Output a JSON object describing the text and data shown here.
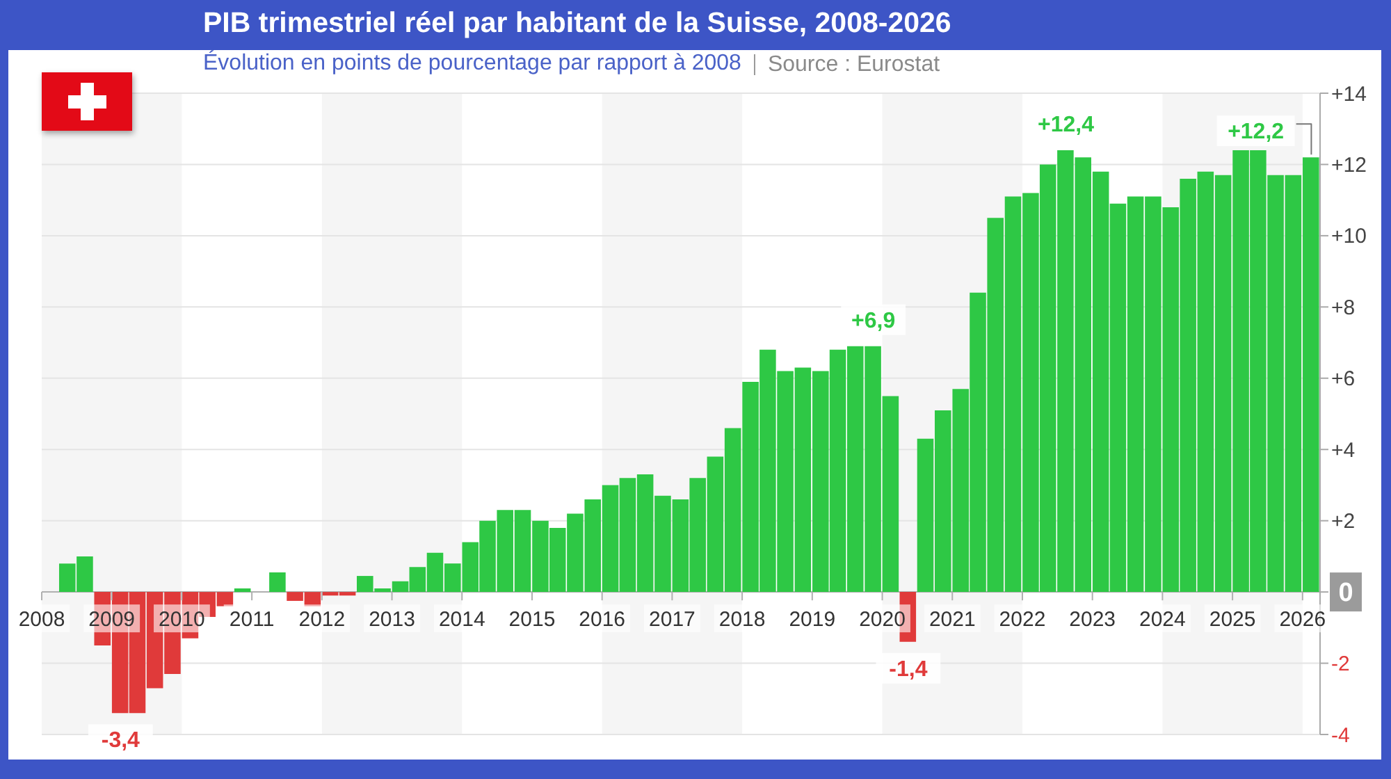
{
  "chart_data": {
    "type": "bar",
    "title": "PIB trimestriel réel par habitant de la Suisse, 2008-2026",
    "subtitle": "Évolution en points de pourcentage par rapport à 2008",
    "annotations": [
      "Source : Eurostat"
    ],
    "x": [
      "2008-02-15",
      "2008-05-15",
      "2008-08-15",
      "2008-11-15",
      "2009-02-15",
      "2009-05-15",
      "2009-08-15",
      "2009-11-15",
      "2010-02-15",
      "2010-05-15",
      "2010-08-15",
      "2010-11-15",
      "2011-02-15",
      "2011-05-15",
      "2011-08-15",
      "2011-11-15",
      "2012-02-15",
      "2012-05-15",
      "2012-08-15",
      "2012-11-15",
      "2013-02-15",
      "2013-05-15",
      "2013-08-15",
      "2013-11-15",
      "2014-02-15",
      "2014-05-15",
      "2014-08-15",
      "2014-11-15",
      "2015-02-15",
      "2015-05-15",
      "2015-08-15",
      "2015-11-15",
      "2016-02-15",
      "2016-05-15",
      "2016-08-15",
      "2016-11-15",
      "2017-02-15",
      "2017-05-15",
      "2017-08-15",
      "2017-11-15",
      "2018-02-15",
      "2018-05-15",
      "2018-08-15",
      "2018-11-15",
      "2019-02-15",
      "2019-05-15",
      "2019-08-15",
      "2019-11-15",
      "2020-02-15",
      "2020-05-15",
      "2020-08-15",
      "2020-11-15",
      "2021-02-15",
      "2021-05-15",
      "2021-08-15",
      "2021-11-15",
      "2022-02-15",
      "2022-05-15",
      "2022-08-15",
      "2022-11-15",
      "2023-02-15",
      "2023-05-15",
      "2023-08-15",
      "2023-11-15",
      "2024-02-15",
      "2024-05-15",
      "2024-08-15",
      "2024-11-15",
      "2025-02-15",
      "2025-05-15",
      "2025-08-15",
      "2025-11-15",
      "2026-02-15"
    ],
    "values": [
      0,
      0.8,
      1.0,
      -1.5,
      -3.4,
      -3.4,
      -2.7,
      -2.3,
      -1.3,
      -0.7,
      -0.4,
      0.1,
      0,
      0.55,
      -0.25,
      -0.4,
      -0.1,
      -0.1,
      0.45,
      0.1,
      0.3,
      0.7,
      1.1,
      0.8,
      1.4,
      2.0,
      2.3,
      2.3,
      2.0,
      1.8,
      2.2,
      2.6,
      3.0,
      3.2,
      3.3,
      2.7,
      2.6,
      3.2,
      3.8,
      4.6,
      5.9,
      6.8,
      6.2,
      6.3,
      6.2,
      6.8,
      6.9,
      6.9,
      5.5,
      -1.4,
      4.3,
      5.1,
      5.7,
      8.4,
      10.5,
      11.1,
      11.2,
      12.0,
      12.4,
      12.2,
      11.8,
      10.9,
      11.1,
      11.1,
      10.8,
      11.6,
      11.8,
      11.7,
      12.4,
      12.4,
      11.7,
      11.7,
      12.2
    ],
    "colors": [
      "#2ec845",
      "#2ec845",
      "#2ec845",
      "#e03a3a",
      "#e03a3a",
      "#e03a3a",
      "#e03a3a",
      "#e03a3a",
      "#e03a3a",
      "#e03a3a",
      "#e03a3a",
      "#2ec845",
      "#2ec845",
      "#2ec845",
      "#e03a3a",
      "#e03a3a",
      "#e03a3a",
      "#e03a3a",
      "#2ec845",
      "#2ec845",
      "#2ec845",
      "#2ec845",
      "#2ec845",
      "#2ec845",
      "#2ec845",
      "#2ec845",
      "#2ec845",
      "#2ec845",
      "#2ec845",
      "#2ec845",
      "#2ec845",
      "#2ec845",
      "#2ec845",
      "#2ec845",
      "#2ec845",
      "#2ec845",
      "#2ec845",
      "#2ec845",
      "#2ec845",
      "#2ec845",
      "#2ec845",
      "#2ec845",
      "#2ec845",
      "#2ec845",
      "#2ec845",
      "#2ec845",
      "#2ec845",
      "#2ec845",
      "#2ec845",
      "#e03a3a",
      "#2ec845",
      "#2ec845",
      "#2ec845",
      "#2ec845",
      "#2ec845",
      "#2ec845",
      "#2ec845",
      "#2ec845",
      "#2ec845",
      "#2ec845",
      "#2ec845",
      "#2ec845",
      "#2ec845",
      "#2ec845",
      "#2ec845",
      "#2ec845",
      "#2ec845",
      "#2ec845",
      "#2ec845",
      "#2ec845",
      "#2ec845",
      "#2ec845",
      "#2ec845"
    ],
    "value_labels": [
      null,
      null,
      null,
      null,
      "-3,4",
      null,
      null,
      null,
      null,
      null,
      null,
      null,
      null,
      null,
      null,
      null,
      null,
      null,
      null,
      null,
      null,
      null,
      null,
      null,
      null,
      null,
      null,
      null,
      null,
      null,
      null,
      null,
      null,
      null,
      null,
      null,
      null,
      null,
      null,
      null,
      null,
      null,
      null,
      null,
      null,
      null,
      null,
      "+6,9",
      null,
      "-1,4",
      null,
      null,
      null,
      null,
      null,
      null,
      null,
      null,
      "+12,4",
      null,
      null,
      null,
      null,
      null,
      null,
      null,
      null,
      null,
      null,
      null,
      null,
      null,
      "+12,2"
    ],
    "xlim": [
      "2008-01",
      "2026-04"
    ],
    "xticks": [
      "2008",
      "2009",
      "2010",
      "2011",
      "2012",
      "2013",
      "2014",
      "2015",
      "2016",
      "2017",
      "2018",
      "2019",
      "2020",
      "2021",
      "2022",
      "2023",
      "2024",
      "2025",
      "2026"
    ],
    "ylim": [
      -4,
      14
    ],
    "yticks": [
      -4,
      -2,
      0,
      {
        "value": 2,
        "label": "+2"
      },
      {
        "value": 4,
        "label": "+4"
      },
      {
        "value": 6,
        "label": "+6"
      },
      {
        "value": 8,
        "label": "+8"
      },
      {
        "value": 10,
        "label": "+10"
      },
      {
        "value": 12,
        "label": "+12"
      },
      {
        "value": 14,
        "label": "+14"
      }
    ],
    "grid": "y",
    "bands": [
      {
        "axis": "x",
        "from": "2008",
        "to": "2010",
        "color": "#f5f5f5"
      },
      {
        "axis": "x",
        "from": "2012",
        "to": "2014",
        "color": "#f5f5f5"
      },
      {
        "axis": "x",
        "from": "2016",
        "to": "2018",
        "color": "#f5f5f5"
      },
      {
        "axis": "x",
        "from": "2020",
        "to": "2022",
        "color": "#f5f5f5"
      },
      {
        "axis": "x",
        "from": "2024",
        "to": "2026",
        "color": "#f5f5f5"
      }
    ]
  }
}
